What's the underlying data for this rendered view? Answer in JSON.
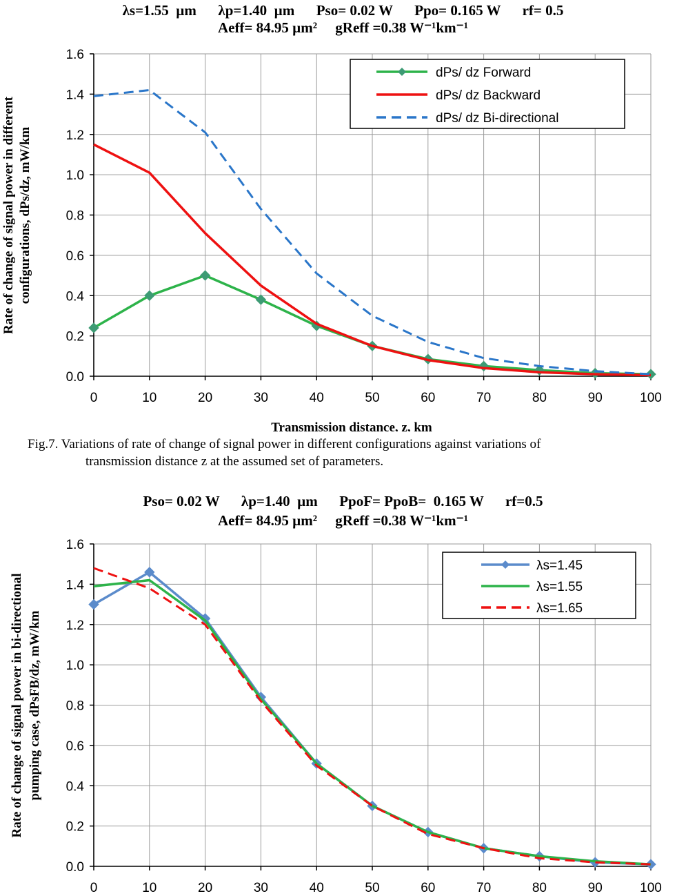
{
  "colors": {
    "green": "#2db34a",
    "red": "#ee1111",
    "blue": "#2a76c9",
    "steel": "#5b8bcb",
    "marker": "#3d9b74",
    "grid": "#9a9a9a"
  },
  "chart_data": [
    {
      "type": "line",
      "title_line1": "λs=1.55  µm      λp=1.40  µm      Pso= 0.02 W      Ppo= 0.165 W      rf= 0.5",
      "title_line2": "Aeff= 84.95 µm²     gReff =0.38 W⁻¹km⁻¹",
      "xlabel": "Transmission distance, z, km",
      "ylabel_line1": "Rate of change of signal power in different",
      "ylabel_line2": "configurations, dPs/dz, mW/km",
      "x": [
        0,
        10,
        20,
        30,
        40,
        50,
        60,
        70,
        80,
        90,
        100
      ],
      "xlim": [
        0,
        100
      ],
      "ylim": [
        0,
        1.6
      ],
      "xticks": [
        "0",
        "10",
        "20",
        "30",
        "40",
        "50",
        "60",
        "70",
        "80",
        "90",
        "100"
      ],
      "yticks": [
        "0.0",
        "0.2",
        "0.4",
        "0.6",
        "0.8",
        "1.0",
        "1.2",
        "1.4",
        "1.6"
      ],
      "legend_position": "top-right",
      "series": [
        {
          "name": "dPs/ dz Forward",
          "values": [
            0.24,
            0.4,
            0.5,
            0.38,
            0.25,
            0.15,
            0.085,
            0.05,
            0.03,
            0.015,
            0.01
          ],
          "color": "#2db34a",
          "dash": "solid",
          "marker": "diamond"
        },
        {
          "name": "dPs/ dz Backward",
          "values": [
            1.15,
            1.01,
            0.71,
            0.45,
            0.26,
            0.15,
            0.08,
            0.04,
            0.02,
            0.01,
            0.005
          ],
          "color": "#ee1111",
          "dash": "solid",
          "marker": "none"
        },
        {
          "name": "dPs/ dz Bi-directional",
          "values": [
            1.39,
            1.42,
            1.21,
            0.83,
            0.51,
            0.3,
            0.17,
            0.09,
            0.05,
            0.025,
            0.01
          ],
          "color": "#2a76c9",
          "dash": "dashed",
          "marker": "none"
        }
      ]
    },
    {
      "type": "line",
      "title_line1": "Pso= 0.02 W      λp=1.40  µm      PpoF= PpoB=  0.165 W      rf=0.5",
      "title_line2": "Aeff= 84.95 µm²     gReff =0.38 W⁻¹km⁻¹",
      "xlabel": "",
      "ylabel_line1": "Rate of change of signal power in bi-directional",
      "ylabel_line2": "pumping case, dPsFB/dz, mW/km",
      "x": [
        0,
        10,
        20,
        30,
        40,
        50,
        60,
        70,
        80,
        90,
        100
      ],
      "xlim": [
        0,
        100
      ],
      "ylim": [
        0,
        1.6
      ],
      "xticks": [
        "0",
        "10",
        "20",
        "30",
        "40",
        "50",
        "60",
        "70",
        "80",
        "90",
        "100"
      ],
      "yticks": [
        "0.0",
        "0.2",
        "0.4",
        "0.6",
        "0.8",
        "1.0",
        "1.2",
        "1.4",
        "1.6"
      ],
      "legend_position": "top-right",
      "series": [
        {
          "name": "λs=1.45",
          "values": [
            1.3,
            1.46,
            1.23,
            0.84,
            0.51,
            0.3,
            0.17,
            0.09,
            0.05,
            0.02,
            0.01
          ],
          "color": "#5b8bcb",
          "dash": "solid",
          "marker": "diamond"
        },
        {
          "name": "λs=1.55",
          "values": [
            1.39,
            1.42,
            1.22,
            0.83,
            0.51,
            0.3,
            0.17,
            0.09,
            0.05,
            0.025,
            0.01
          ],
          "color": "#2db34a",
          "dash": "solid",
          "marker": "none"
        },
        {
          "name": "λs=1.65",
          "values": [
            1.48,
            1.38,
            1.2,
            0.82,
            0.5,
            0.3,
            0.16,
            0.09,
            0.04,
            0.02,
            0.01
          ],
          "color": "#ee1111",
          "dash": "dashed",
          "marker": "none"
        }
      ]
    }
  ],
  "caption": {
    "line1": "Fig.7. Variations of rate of change of signal power in different configurations against variations of",
    "line2": "transmission distance z at the assumed set of parameters."
  }
}
